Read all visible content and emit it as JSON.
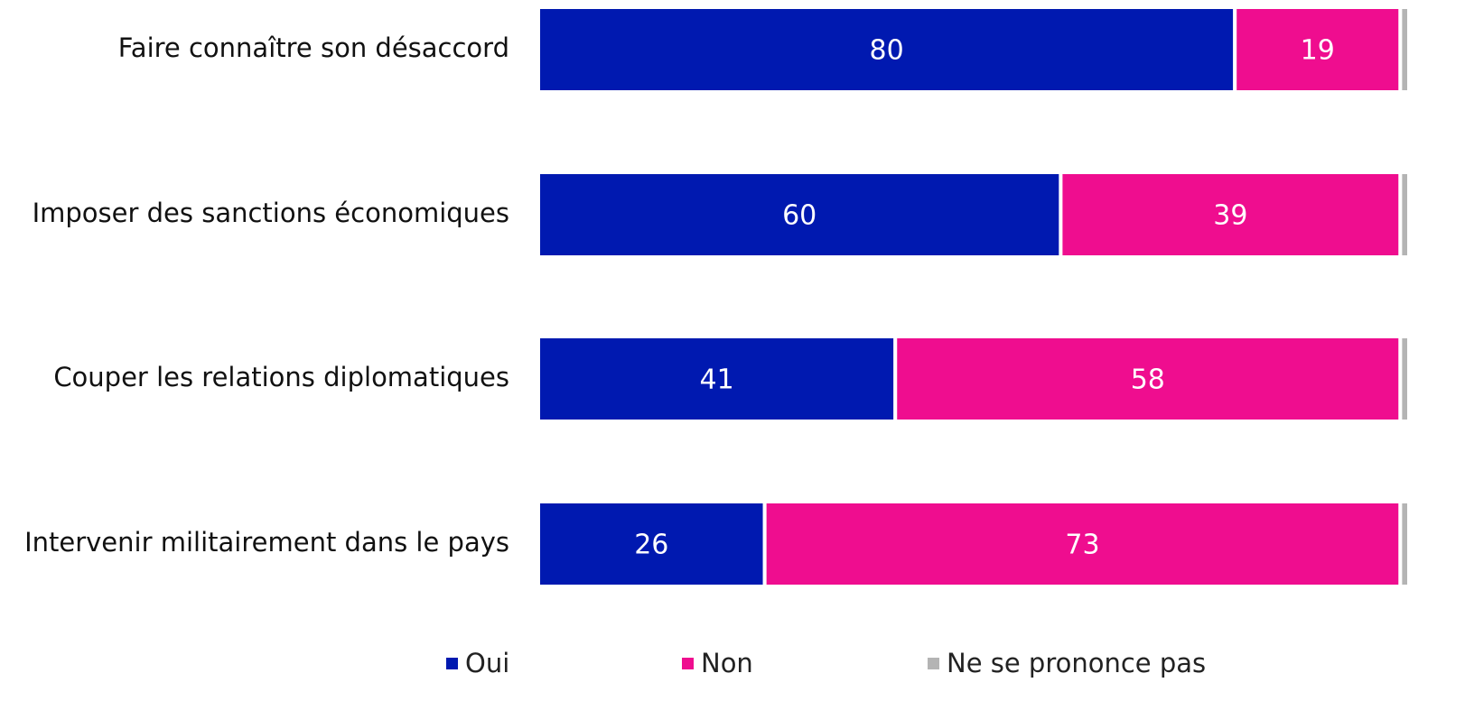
{
  "chart_data": {
    "type": "stacked_bar_horizontal",
    "categories": [
      "Faire connaître son désaccord",
      "Imposer des sanctions économiques",
      "Couper les relations diplomatiques",
      "Intervenir militairement dans le pays"
    ],
    "series": [
      {
        "name": "Oui",
        "color": "#0019b0",
        "values": [
          80,
          60,
          41,
          26
        ]
      },
      {
        "name": "Non",
        "color": "#ef0d8f",
        "values": [
          19,
          39,
          58,
          73
        ]
      },
      {
        "name": "Ne se prononce pas",
        "color": "#b4b4b4",
        "values": [
          1,
          1,
          1,
          1
        ]
      }
    ],
    "xlim": [
      0,
      100
    ],
    "legend": "bottom"
  }
}
